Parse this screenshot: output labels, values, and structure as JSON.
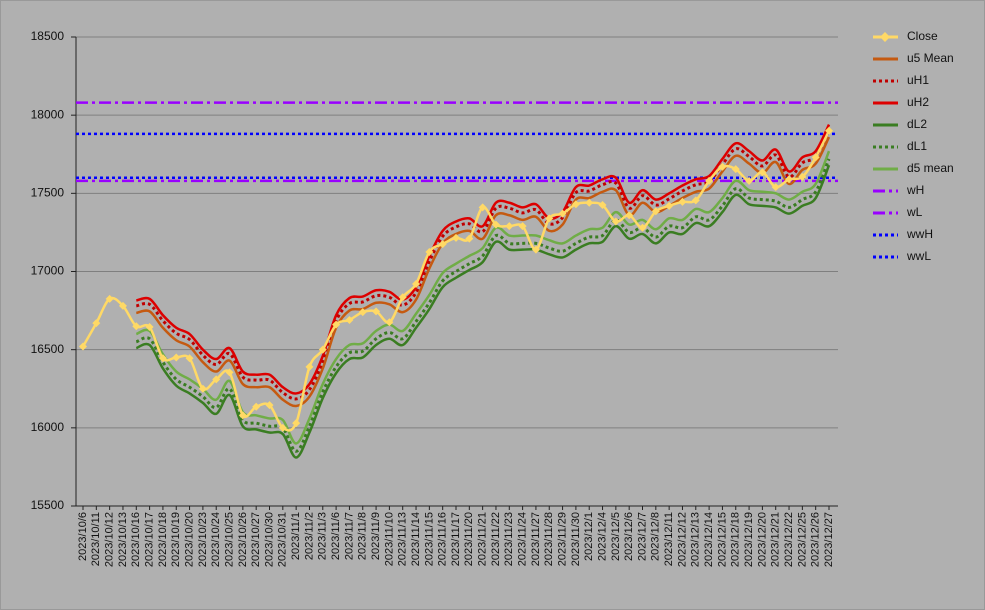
{
  "chart_data": {
    "type": "line",
    "categories": [
      "2023/10/6",
      "2023/10/11",
      "2023/10/12",
      "2023/10/13",
      "2023/10/16",
      "2023/10/17",
      "2023/10/18",
      "2023/10/19",
      "2023/10/20",
      "2023/10/23",
      "2023/10/24",
      "2023/10/25",
      "2023/10/26",
      "2023/10/27",
      "2023/10/30",
      "2023/10/31",
      "2023/11/1",
      "2023/11/2",
      "2023/11/3",
      "2023/11/6",
      "2023/11/7",
      "2023/11/8",
      "2023/11/9",
      "2023/11/10",
      "2023/11/13",
      "2023/11/14",
      "2023/11/15",
      "2023/11/16",
      "2023/11/17",
      "2023/11/20",
      "2023/11/21",
      "2023/11/22",
      "2023/11/23",
      "2023/11/24",
      "2023/11/27",
      "2023/11/28",
      "2023/11/29",
      "2023/11/30",
      "2023/12/1",
      "2023/12/4",
      "2023/12/5",
      "2023/12/6",
      "2023/12/7",
      "2023/12/8",
      "2023/12/11",
      "2023/12/12",
      "2023/12/13",
      "2023/12/14",
      "2023/12/15",
      "2023/12/18",
      "2023/12/19",
      "2023/12/20",
      "2023/12/21",
      "2023/12/22",
      "2023/12/25",
      "2023/12/26",
      "2023/12/27"
    ],
    "series": [
      {
        "name": "Close",
        "color": "#ffd966",
        "dash": "solid",
        "marker": "diamond",
        "values": [
          16520,
          16670,
          16825,
          16780,
          16650,
          16645,
          16445,
          16450,
          16445,
          16250,
          16310,
          16355,
          16080,
          16135,
          16145,
          16000,
          16030,
          16390,
          16500,
          16660,
          16690,
          16740,
          16745,
          16675,
          16835,
          16920,
          17125,
          17175,
          17215,
          17210,
          17410,
          17300,
          17290,
          17290,
          17140,
          17340,
          17370,
          17430,
          17440,
          17425,
          17320,
          17360,
          17280,
          17385,
          17420,
          17445,
          17455,
          17580,
          17670,
          17655,
          17580,
          17635,
          17540,
          17590,
          17605,
          17730,
          17900
        ]
      },
      {
        "name": "u5 Mean",
        "color": "#c55a11",
        "dash": "solid",
        "values": [
          null,
          null,
          null,
          null,
          16735,
          16745,
          16640,
          16560,
          16520,
          16420,
          16360,
          16430,
          16280,
          16260,
          16260,
          16180,
          16140,
          16200,
          16380,
          16640,
          16750,
          16760,
          16800,
          16790,
          16740,
          16820,
          17020,
          17180,
          17240,
          17260,
          17210,
          17360,
          17360,
          17330,
          17350,
          17260,
          17300,
          17460,
          17470,
          17510,
          17520,
          17360,
          17440,
          17380,
          17420,
          17470,
          17510,
          17530,
          17640,
          17740,
          17690,
          17630,
          17700,
          17560,
          17650,
          17690,
          17860
        ]
      },
      {
        "name": "uH1",
        "color": "#c00000",
        "dash": "dotted",
        "values": [
          null,
          null,
          null,
          null,
          16780,
          16790,
          16685,
          16605,
          16565,
          16465,
          16405,
          16475,
          16325,
          16305,
          16305,
          16225,
          16185,
          16245,
          16425,
          16685,
          16795,
          16805,
          16845,
          16835,
          16785,
          16865,
          17065,
          17225,
          17285,
          17305,
          17255,
          17405,
          17405,
          17375,
          17395,
          17305,
          17345,
          17505,
          17515,
          17555,
          17565,
          17405,
          17485,
          17425,
          17465,
          17515,
          17555,
          17575,
          17685,
          17785,
          17735,
          17675,
          17745,
          17605,
          17695,
          17735,
          17905
        ]
      },
      {
        "name": "uH2",
        "color": "#dd0000",
        "dash": "solid",
        "values": [
          null,
          null,
          null,
          null,
          16815,
          16825,
          16720,
          16640,
          16600,
          16500,
          16440,
          16510,
          16360,
          16340,
          16340,
          16260,
          16220,
          16280,
          16460,
          16720,
          16830,
          16840,
          16880,
          16870,
          16820,
          16900,
          17100,
          17260,
          17320,
          17340,
          17290,
          17440,
          17440,
          17410,
          17430,
          17340,
          17380,
          17540,
          17550,
          17590,
          17600,
          17440,
          17520,
          17460,
          17500,
          17550,
          17590,
          17610,
          17720,
          17820,
          17770,
          17710,
          17780,
          17640,
          17730,
          17770,
          17940
        ]
      },
      {
        "name": "dL2",
        "color": "#3a7d22",
        "dash": "solid",
        "values": [
          null,
          null,
          null,
          null,
          16510,
          16530,
          16380,
          16270,
          16220,
          16160,
          16090,
          16210,
          16010,
          15990,
          15970,
          15960,
          15810,
          15970,
          16190,
          16350,
          16440,
          16450,
          16530,
          16570,
          16530,
          16640,
          16760,
          16900,
          16960,
          17010,
          17060,
          17190,
          17140,
          17140,
          17140,
          17110,
          17090,
          17140,
          17180,
          17190,
          17290,
          17210,
          17240,
          17180,
          17250,
          17240,
          17310,
          17290,
          17380,
          17490,
          17430,
          17420,
          17410,
          17370,
          17420,
          17470,
          17680
        ]
      },
      {
        "name": "dL1",
        "color": "#3a7d22",
        "dash": "dotted",
        "values": [
          null,
          null,
          null,
          null,
          16550,
          16570,
          16420,
          16310,
          16260,
          16200,
          16130,
          16250,
          16050,
          16030,
          16010,
          16000,
          15850,
          16010,
          16230,
          16390,
          16480,
          16490,
          16570,
          16610,
          16570,
          16680,
          16800,
          16940,
          17000,
          17050,
          17100,
          17230,
          17180,
          17180,
          17180,
          17150,
          17130,
          17180,
          17220,
          17230,
          17330,
          17250,
          17280,
          17220,
          17290,
          17280,
          17350,
          17330,
          17420,
          17530,
          17470,
          17460,
          17450,
          17410,
          17460,
          17510,
          17720
        ]
      },
      {
        "name": "d5 mean",
        "color": "#70ad47",
        "dash": "solid",
        "values": [
          null,
          null,
          null,
          null,
          16600,
          16620,
          16470,
          16360,
          16310,
          16250,
          16180,
          16300,
          16100,
          16080,
          16060,
          16050,
          15900,
          16060,
          16280,
          16440,
          16530,
          16540,
          16620,
          16660,
          16620,
          16730,
          16850,
          16990,
          17050,
          17100,
          17150,
          17280,
          17230,
          17230,
          17230,
          17200,
          17180,
          17230,
          17270,
          17280,
          17380,
          17300,
          17330,
          17270,
          17340,
          17330,
          17400,
          17380,
          17470,
          17580,
          17520,
          17510,
          17500,
          17460,
          17510,
          17560,
          17770
        ]
      }
    ],
    "hlines": [
      {
        "name": "wH",
        "color": "#9900ff",
        "dash": "dashdot",
        "value": 18080
      },
      {
        "name": "wL",
        "color": "#9900ff",
        "dash": "dashdot",
        "value": 17580
      },
      {
        "name": "wwH",
        "color": "#0000ff",
        "dash": "dotted",
        "value": 17880
      },
      {
        "name": "wwL",
        "color": "#0000ff",
        "dash": "dotted",
        "value": 17600
      }
    ],
    "ylim": [
      15500,
      18500
    ],
    "yticks": [
      15500,
      16000,
      16500,
      17000,
      17500,
      18000,
      18500
    ],
    "grid": true,
    "legend": "right"
  }
}
